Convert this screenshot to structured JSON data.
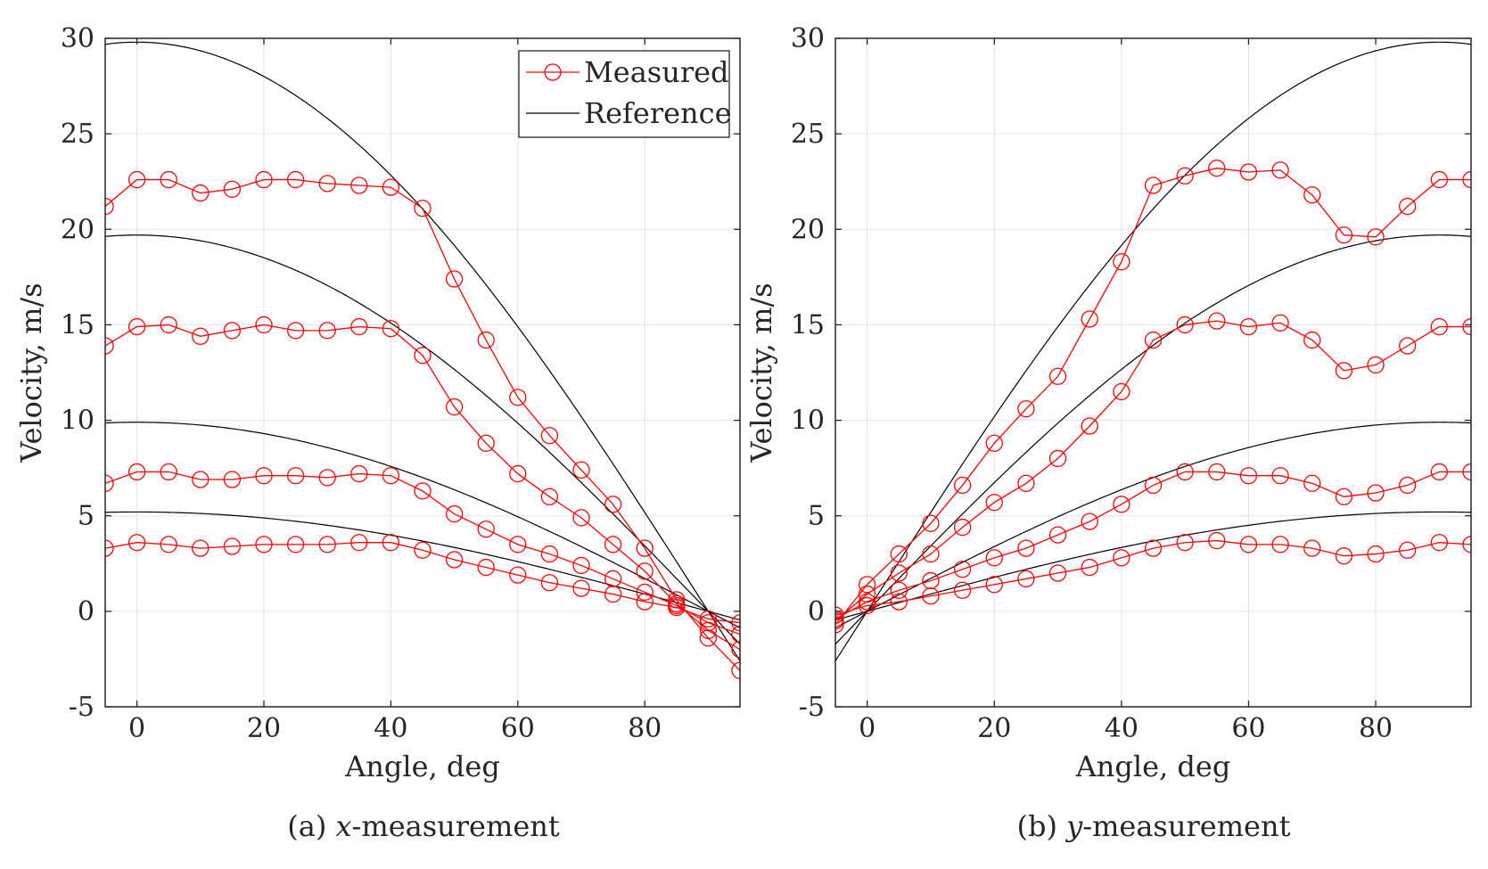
{
  "chart_data": [
    {
      "type": "line",
      "panel": "a",
      "caption_prefix": "(a) ",
      "caption_var": "x",
      "caption_suffix": "-measurement",
      "xlabel": "Angle, deg",
      "ylabel": "Velocity, m/s",
      "xlim": [
        -5,
        95
      ],
      "ylim": [
        -5,
        30
      ],
      "xticks": [
        0,
        20,
        40,
        60,
        80
      ],
      "yticks": [
        -5,
        0,
        5,
        10,
        15,
        20,
        25,
        30
      ],
      "grid": true,
      "legend": {
        "position": "top-right",
        "entries": [
          {
            "label": "Measured",
            "style": "red-line-circle"
          },
          {
            "label": "Reference",
            "style": "black-line"
          }
        ]
      },
      "x": [
        -5,
        0,
        5,
        10,
        15,
        20,
        25,
        30,
        35,
        40,
        45,
        50,
        55,
        60,
        65,
        70,
        75,
        80,
        85,
        90,
        95
      ],
      "reference_amplitudes": [
        29.8,
        19.7,
        9.9,
        5.2
      ],
      "reference_formula": "A*cos(angle)",
      "series": [
        {
          "values": [
            21.2,
            22.6,
            22.6,
            21.9,
            22.1,
            22.6,
            22.6,
            22.4,
            22.3,
            22.2,
            21.1,
            17.4,
            14.2,
            11.2,
            9.2,
            7.4,
            5.6,
            3.3,
            0.6,
            -1.4,
            -3.1
          ]
        },
        {
          "values": [
            13.9,
            14.9,
            15.0,
            14.4,
            14.7,
            15.0,
            14.7,
            14.7,
            14.9,
            14.8,
            13.4,
            10.7,
            8.8,
            7.2,
            6.0,
            4.9,
            3.5,
            2.1,
            0.4,
            -1.0,
            -2.0
          ]
        },
        {
          "values": [
            6.7,
            7.3,
            7.3,
            6.9,
            6.9,
            7.1,
            7.1,
            7.0,
            7.2,
            7.1,
            6.3,
            5.1,
            4.3,
            3.5,
            3.0,
            2.4,
            1.7,
            1.0,
            0.3,
            -0.6,
            -1.2
          ]
        },
        {
          "values": [
            3.3,
            3.6,
            3.5,
            3.3,
            3.4,
            3.5,
            3.5,
            3.5,
            3.6,
            3.6,
            3.2,
            2.7,
            2.3,
            1.9,
            1.5,
            1.2,
            0.9,
            0.5,
            0.2,
            -0.4,
            -0.6
          ]
        }
      ]
    },
    {
      "type": "line",
      "panel": "b",
      "caption_prefix": "(b) ",
      "caption_var": "y",
      "caption_suffix": "-measurement",
      "xlabel": "Angle, deg",
      "ylabel": "Velocity, m/s",
      "xlim": [
        -5,
        95
      ],
      "ylim": [
        -5,
        30
      ],
      "xticks": [
        0,
        20,
        40,
        60,
        80
      ],
      "yticks": [
        -5,
        0,
        5,
        10,
        15,
        20,
        25,
        30
      ],
      "grid": true,
      "x": [
        -5,
        0,
        5,
        10,
        15,
        20,
        25,
        30,
        35,
        40,
        45,
        50,
        55,
        60,
        65,
        70,
        75,
        80,
        85,
        90,
        95
      ],
      "reference_amplitudes": [
        29.8,
        19.7,
        9.9,
        5.2
      ],
      "reference_formula": "A*sin(angle)",
      "series": [
        {
          "values": [
            -0.7,
            1.4,
            3.0,
            4.6,
            6.6,
            8.8,
            10.6,
            12.3,
            15.3,
            18.3,
            22.3,
            22.8,
            23.2,
            23.0,
            23.1,
            21.8,
            19.7,
            19.6,
            21.2,
            22.6,
            22.6
          ]
        },
        {
          "values": [
            -0.5,
            0.9,
            2.0,
            3.0,
            4.4,
            5.7,
            6.7,
            8.0,
            9.7,
            11.5,
            14.2,
            15.0,
            15.2,
            14.9,
            15.1,
            14.2,
            12.6,
            12.9,
            13.9,
            14.9,
            14.9
          ]
        },
        {
          "values": [
            -0.4,
            0.5,
            1.1,
            1.6,
            2.2,
            2.8,
            3.3,
            4.0,
            4.7,
            5.6,
            6.6,
            7.3,
            7.3,
            7.1,
            7.1,
            6.7,
            6.0,
            6.2,
            6.6,
            7.3,
            7.3
          ]
        },
        {
          "values": [
            -0.2,
            0.3,
            0.5,
            0.8,
            1.1,
            1.4,
            1.7,
            2.0,
            2.3,
            2.8,
            3.3,
            3.6,
            3.7,
            3.5,
            3.5,
            3.3,
            2.9,
            3.0,
            3.2,
            3.6,
            3.5
          ]
        }
      ]
    }
  ]
}
